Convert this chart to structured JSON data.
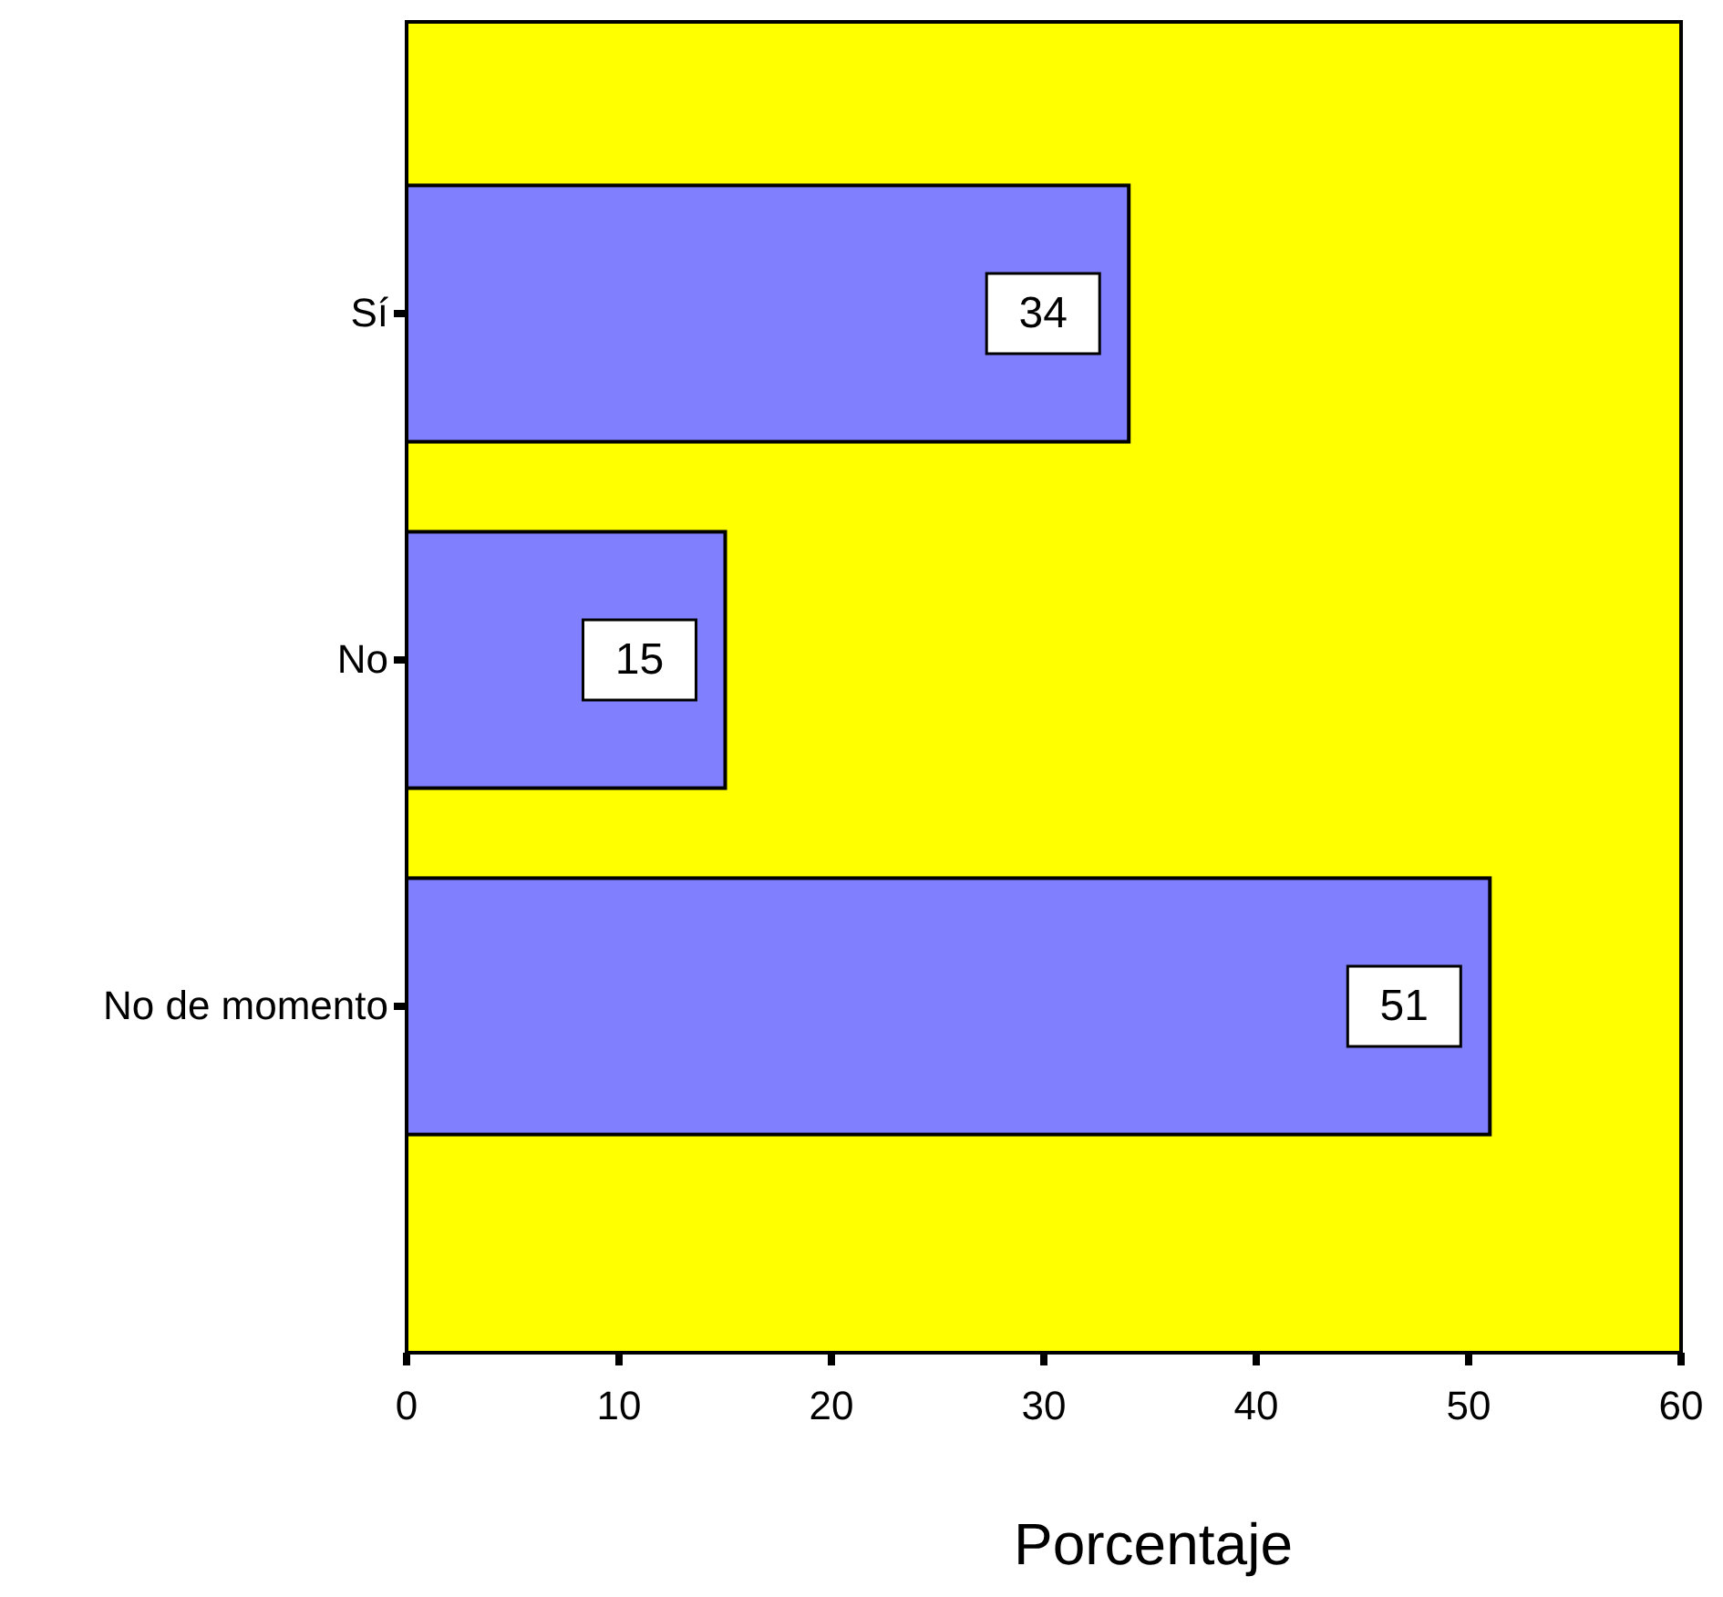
{
  "chart_data": {
    "type": "bar",
    "orientation": "horizontal",
    "xlabel": "Porcentaje",
    "categories": [
      "Sí",
      "No",
      "No de momento"
    ],
    "values": [
      34,
      15,
      51
    ],
    "color": "#8080ff",
    "xlim": [
      0,
      60
    ],
    "xticks": [
      0,
      10,
      20,
      30,
      40,
      50,
      60
    ],
    "data_labels": true
  }
}
